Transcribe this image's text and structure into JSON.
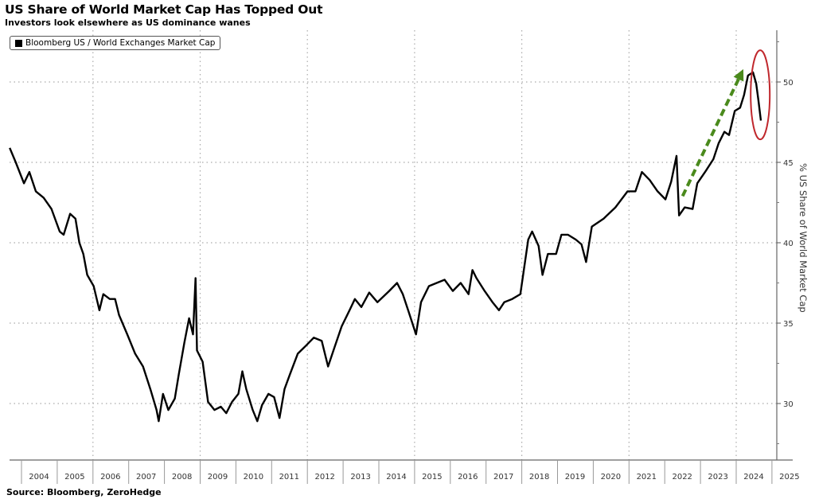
{
  "chart_data": {
    "type": "line",
    "title": "US Share of World Market Cap Has Topped Out",
    "subtitle": "Investors look elsewhere as US dominance wanes",
    "legend": {
      "entries": [
        "Bloomberg US / World Exchanges Market Cap"
      ],
      "placement": "top-left"
    },
    "source": "Source:  Bloomberg, ZeroHedge",
    "ylabel": "% US Share of World Market Cap",
    "y_axis_side": "right",
    "ylim": [
      26.5,
      53
    ],
    "yticks": [
      "30",
      "35",
      "40",
      "45",
      "50"
    ],
    "xlim": [
      2003.67,
      2025.5
    ],
    "xticks": [
      "2004",
      "2005",
      "2006",
      "2007",
      "2008",
      "2009",
      "2010",
      "2011",
      "2012",
      "2013",
      "2014",
      "2015",
      "2016",
      "2017",
      "2018",
      "2019",
      "2020",
      "2021",
      "2022",
      "2023",
      "2024",
      "2025"
    ],
    "grid": true,
    "colors": {
      "series": "#000000",
      "arrow": "#4a8a1c",
      "highlight": "#c0282d"
    },
    "series": [
      {
        "name": "Bloomberg US / World Exchanges Market Cap",
        "x": [
          2003.67,
          2003.84,
          2004.07,
          2004.22,
          2004.4,
          2004.62,
          2004.84,
          2005.07,
          2005.18,
          2005.36,
          2005.51,
          2005.62,
          2005.73,
          2005.84,
          2006.02,
          2006.18,
          2006.29,
          2006.47,
          2006.62,
          2006.73,
          2006.96,
          2007.18,
          2007.4,
          2007.62,
          2007.78,
          2007.84,
          2007.96,
          2008.11,
          2008.29,
          2008.4,
          2008.56,
          2008.69,
          2008.8,
          2008.87,
          2008.91,
          2009.07,
          2009.22,
          2009.4,
          2009.58,
          2009.73,
          2009.89,
          2010.07,
          2010.18,
          2010.29,
          2010.47,
          2010.6,
          2010.73,
          2010.91,
          2011.07,
          2011.22,
          2011.36,
          2011.51,
          2011.73,
          2011.96,
          2012.18,
          2012.4,
          2012.58,
          2012.73,
          2012.96,
          2013.18,
          2013.33,
          2013.51,
          2013.73,
          2013.96,
          2014.29,
          2014.51,
          2014.67,
          2014.82,
          2015.04,
          2015.18,
          2015.4,
          2015.62,
          2015.84,
          2016.07,
          2016.29,
          2016.51,
          2016.62,
          2016.73,
          2016.96,
          2017.18,
          2017.36,
          2017.51,
          2017.73,
          2017.96,
          2018.18,
          2018.29,
          2018.47,
          2018.58,
          2018.73,
          2018.96,
          2019.11,
          2019.29,
          2019.51,
          2019.67,
          2019.8,
          2019.96,
          2020.29,
          2020.62,
          2020.96,
          2021.18,
          2021.36,
          2021.58,
          2021.8,
          2022.02,
          2022.18,
          2022.33,
          2022.4,
          2022.56,
          2022.78,
          2022.91,
          2023.13,
          2023.36,
          2023.51,
          2023.67,
          2023.8,
          2023.96,
          2024.11,
          2024.22,
          2024.33,
          2024.47,
          2024.56,
          2024.62,
          2024.69
        ],
        "y": [
          45.9,
          45.0,
          43.7,
          44.4,
          43.2,
          42.8,
          42.1,
          40.7,
          40.5,
          41.8,
          41.5,
          40.0,
          39.3,
          38.0,
          37.3,
          35.8,
          36.8,
          36.5,
          36.5,
          35.5,
          34.3,
          33.1,
          32.3,
          30.8,
          29.6,
          28.9,
          30.6,
          29.6,
          30.3,
          31.8,
          33.8,
          35.3,
          34.3,
          37.8,
          33.3,
          32.6,
          30.1,
          29.6,
          29.8,
          29.4,
          30.1,
          30.6,
          32.0,
          30.9,
          29.6,
          28.9,
          29.9,
          30.6,
          30.4,
          29.1,
          30.9,
          31.8,
          33.1,
          33.6,
          34.1,
          33.9,
          32.3,
          33.3,
          34.8,
          35.8,
          36.5,
          36.0,
          36.9,
          36.3,
          37.0,
          37.5,
          36.8,
          35.8,
          34.3,
          36.3,
          37.3,
          37.5,
          37.7,
          37.0,
          37.5,
          36.8,
          38.3,
          37.8,
          37.0,
          36.3,
          35.8,
          36.3,
          36.5,
          36.8,
          40.2,
          40.7,
          39.8,
          38.0,
          39.3,
          39.3,
          40.5,
          40.5,
          40.2,
          39.9,
          38.8,
          41.0,
          41.5,
          42.2,
          43.2,
          43.2,
          44.4,
          43.9,
          43.2,
          42.7,
          43.8,
          45.4,
          41.7,
          42.2,
          42.1,
          43.7,
          44.4,
          45.2,
          46.2,
          46.9,
          46.7,
          48.2,
          48.4,
          49.2,
          50.4,
          50.6,
          49.9,
          48.9,
          47.6
        ]
      }
    ],
    "annotations": [
      {
        "type": "dashed-arrow",
        "color": "#4a8a1c",
        "from": {
          "x": 2022.5,
          "y": 42.9
        },
        "to": {
          "x": 2024.2,
          "y": 50.8
        }
      },
      {
        "type": "ellipse",
        "color": "#c0282d",
        "center": {
          "x": 2024.65,
          "y": 49.2
        }
      }
    ]
  }
}
